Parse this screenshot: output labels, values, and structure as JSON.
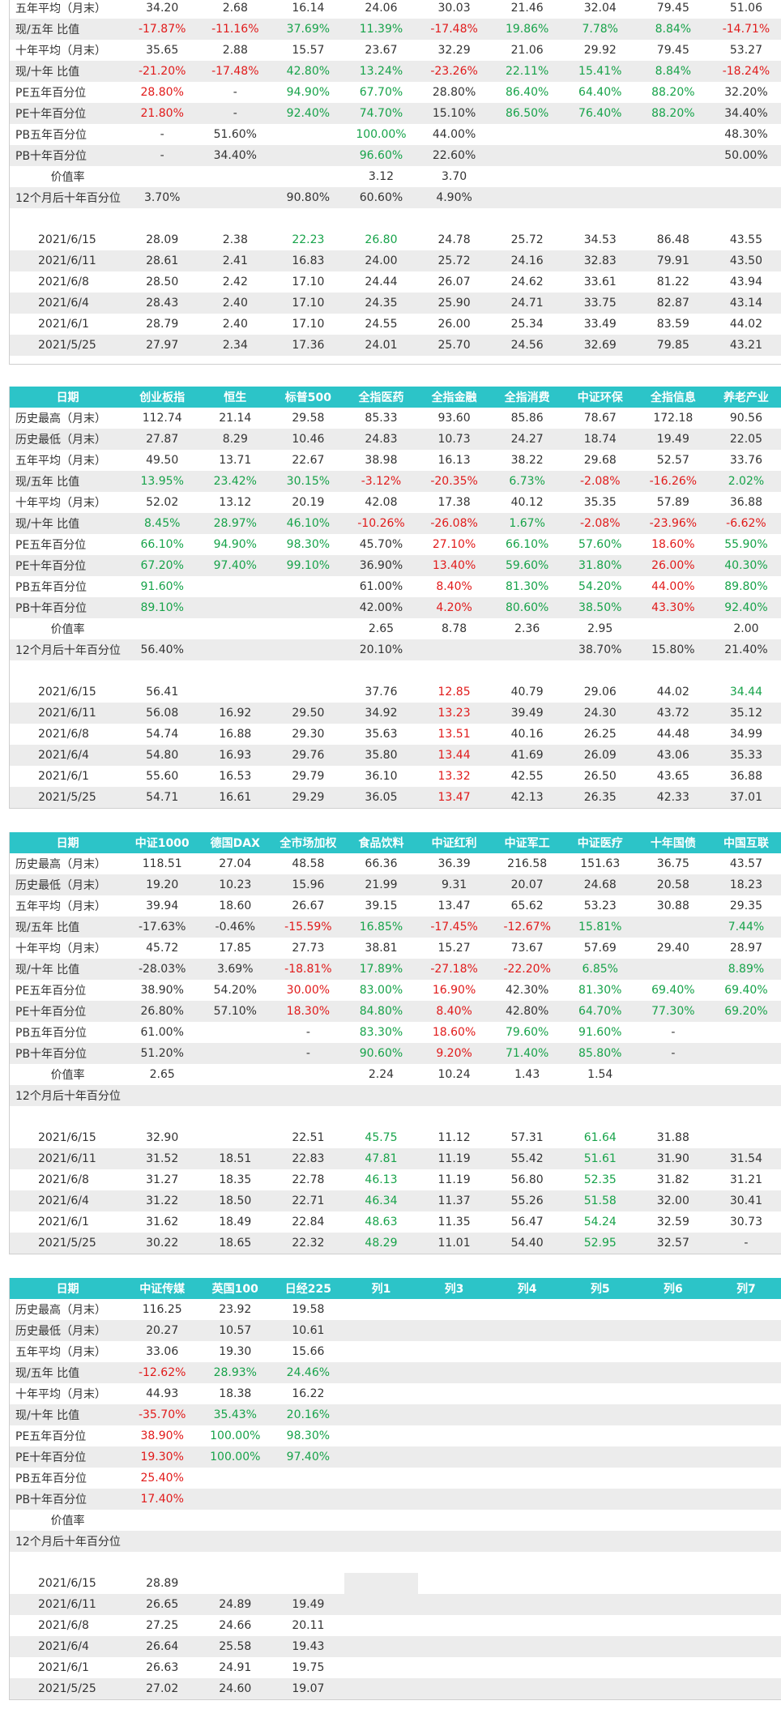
{
  "row_labels": {
    "hist_high": "历史最高（月末）",
    "hist_low": "历史最低（月末）",
    "avg5": "五年平均（月末）",
    "r5": "现/五年 比值",
    "avg10": "十年平均（月末）",
    "r10": "现/十年 比值",
    "pe5": "PE五年百分位",
    "pe10": "PE十年百分位",
    "pb5": "PB五年百分位",
    "pb10": "PB十年百分位",
    "vr": "价值率",
    "m12": "12个月后十年百分位"
  },
  "dates": [
    "2021/6/15",
    "2021/6/11",
    "2021/6/8",
    "2021/6/4",
    "2021/6/1",
    "2021/5/25"
  ],
  "tables": [
    {
      "header_cells": [],
      "rows": [
        {
          "k": "avg5",
          "c": [
            "34.20",
            "2.68",
            "16.14",
            "24.06",
            "30.03",
            "21.46",
            "32.04",
            "79.45",
            "51.06"
          ]
        },
        {
          "k": "r5",
          "c": [
            "-17.87%",
            "-11.16%",
            "37.69%",
            "11.39%",
            "-17.48%",
            "19.86%",
            "7.78%",
            "8.84%",
            "-14.71%"
          ]
        },
        {
          "k": "avg10",
          "c": [
            "35.65",
            "2.88",
            "15.57",
            "23.67",
            "32.29",
            "21.06",
            "29.92",
            "79.45",
            "53.27"
          ]
        },
        {
          "k": "r10",
          "c": [
            "-21.20%",
            "-17.48%",
            "42.80%",
            "13.24%",
            "-23.26%",
            "22.11%",
            "15.41%",
            "8.84%",
            "-18.24%"
          ]
        },
        {
          "k": "pe5",
          "c": [
            "28.80%",
            "-",
            "94.90%",
            "67.70%",
            "28.80%",
            "86.40%",
            "64.40%",
            "88.20%",
            "32.20%"
          ]
        },
        {
          "k": "pe10",
          "c": [
            "21.80%",
            "-",
            "92.40%",
            "74.70%",
            "15.10%",
            "86.50%",
            "76.40%",
            "88.20%",
            "34.40%"
          ]
        },
        {
          "k": "pb5",
          "c": [
            "-",
            "51.60%",
            "",
            "100.00%",
            "44.00%",
            "",
            "",
            "",
            "48.30%"
          ]
        },
        {
          "k": "pb10",
          "c": [
            "-",
            "34.40%",
            "",
            "96.60%",
            "22.60%",
            "",
            "",
            "",
            "50.00%"
          ]
        },
        {
          "k": "vr",
          "c": [
            "",
            "",
            "",
            "3.12",
            "3.70",
            "",
            "",
            "",
            ""
          ]
        },
        {
          "k": "m12",
          "c": [
            "3.70%",
            "",
            "90.80%",
            "60.60%",
            "4.90%",
            "",
            "",
            "",
            ""
          ]
        }
      ],
      "daily": [
        [
          "28.09",
          "2.38",
          "22.23",
          "26.80",
          "24.78",
          "25.72",
          "34.53",
          "86.48",
          "43.55"
        ],
        [
          "28.61",
          "2.41",
          "16.83",
          "24.00",
          "25.72",
          "24.16",
          "32.83",
          "79.91",
          "43.50"
        ],
        [
          "28.50",
          "2.42",
          "17.10",
          "24.44",
          "26.07",
          "24.62",
          "33.61",
          "81.22",
          "43.94"
        ],
        [
          "28.43",
          "2.40",
          "17.10",
          "24.35",
          "25.90",
          "24.71",
          "33.75",
          "82.87",
          "43.14"
        ],
        [
          "28.79",
          "2.40",
          "17.10",
          "24.55",
          "26.00",
          "25.34",
          "33.49",
          "83.59",
          "44.02"
        ],
        [
          "27.97",
          "2.34",
          "17.36",
          "24.01",
          "25.70",
          "24.56",
          "32.69",
          "79.85",
          "43.21"
        ]
      ]
    },
    {
      "header_cells": [
        "日期",
        "创业板指",
        "恒生",
        "标普500",
        "全指医药",
        "全指金融",
        "全指消费",
        "中证环保",
        "全指信息",
        "养老产业"
      ],
      "rows": [
        {
          "k": "hist_high",
          "c": [
            "112.74",
            "21.14",
            "29.58",
            "85.33",
            "93.60",
            "85.86",
            "78.67",
            "172.18",
            "90.56"
          ]
        },
        {
          "k": "hist_low",
          "c": [
            "27.87",
            "8.29",
            "10.46",
            "24.83",
            "10.73",
            "24.27",
            "18.74",
            "19.49",
            "22.05"
          ]
        },
        {
          "k": "avg5",
          "c": [
            "49.50",
            "13.71",
            "22.67",
            "38.98",
            "16.13",
            "38.22",
            "29.68",
            "52.57",
            "33.76"
          ]
        },
        {
          "k": "r5",
          "c": [
            "13.95%",
            "23.42%",
            "30.15%",
            "-3.12%",
            "-20.35%",
            "6.73%",
            "-2.08%",
            "-16.26%",
            "2.02%"
          ]
        },
        {
          "k": "avg10",
          "c": [
            "52.02",
            "13.12",
            "20.19",
            "42.08",
            "17.38",
            "40.12",
            "35.35",
            "57.89",
            "36.88"
          ]
        },
        {
          "k": "r10",
          "c": [
            "8.45%",
            "28.97%",
            "46.10%",
            "-10.26%",
            "-26.08%",
            "1.67%",
            "-2.08%",
            "-23.96%",
            "-6.62%"
          ]
        },
        {
          "k": "pe5",
          "c": [
            "66.10%",
            "94.90%",
            "98.30%",
            "45.70%",
            "27.10%",
            "66.10%",
            "57.60%",
            "18.60%",
            "55.90%"
          ]
        },
        {
          "k": "pe10",
          "c": [
            "67.20%",
            "97.40%",
            "99.10%",
            "36.90%",
            "13.40%",
            "59.60%",
            "31.80%",
            "26.00%",
            "40.30%"
          ]
        },
        {
          "k": "pb5",
          "c": [
            "91.60%",
            "",
            "",
            "61.00%",
            "8.40%",
            "81.30%",
            "54.20%",
            "44.00%",
            "89.80%"
          ]
        },
        {
          "k": "pb10",
          "c": [
            "89.10%",
            "",
            "",
            "42.00%",
            "4.20%",
            "80.60%",
            "38.50%",
            "43.30%",
            "92.40%"
          ]
        },
        {
          "k": "vr",
          "c": [
            "",
            "",
            "",
            "2.65",
            "8.78",
            "2.36",
            "2.95",
            "",
            "2.00"
          ]
        },
        {
          "k": "m12",
          "c": [
            "56.40%",
            "",
            "",
            "20.10%",
            "",
            "",
            "38.70%",
            "15.80%",
            "21.40%"
          ]
        }
      ],
      "daily": [
        [
          "56.41",
          "",
          "",
          "37.76",
          "12.85",
          "40.79",
          "29.06",
          "44.02",
          "34.44"
        ],
        [
          "56.08",
          "16.92",
          "29.50",
          "34.92",
          "13.23",
          "39.49",
          "24.30",
          "43.72",
          "35.12"
        ],
        [
          "54.74",
          "16.88",
          "29.30",
          "35.63",
          "13.51",
          "40.16",
          "26.25",
          "44.48",
          "34.99"
        ],
        [
          "54.80",
          "16.93",
          "29.76",
          "35.80",
          "13.44",
          "41.69",
          "26.09",
          "43.06",
          "35.33"
        ],
        [
          "55.60",
          "16.53",
          "29.79",
          "36.10",
          "13.32",
          "42.55",
          "26.50",
          "43.65",
          "36.88"
        ],
        [
          "54.71",
          "16.61",
          "29.29",
          "36.05",
          "13.47",
          "42.13",
          "26.35",
          "42.33",
          "37.01"
        ]
      ]
    },
    {
      "header_cells": [
        "日期",
        "中证1000",
        "德国DAX",
        "全市场加权",
        "食品饮料",
        "中证红利",
        "中证军工",
        "中证医疗",
        "十年国债",
        "中国互联"
      ],
      "rows": [
        {
          "k": "hist_high",
          "c": [
            "118.51",
            "27.04",
            "48.58",
            "66.36",
            "36.39",
            "216.58",
            "151.63",
            "36.75",
            "43.57"
          ]
        },
        {
          "k": "hist_low",
          "c": [
            "19.20",
            "10.23",
            "15.96",
            "21.99",
            "9.31",
            "20.07",
            "24.68",
            "20.58",
            "18.23"
          ]
        },
        {
          "k": "avg5",
          "c": [
            "39.94",
            "18.60",
            "26.67",
            "39.15",
            "13.47",
            "65.62",
            "53.23",
            "30.88",
            "29.35"
          ]
        },
        {
          "k": "r5",
          "c": [
            "-17.63%",
            "-0.46%",
            "-15.59%",
            "16.85%",
            "-17.45%",
            "-12.67%",
            "15.81%",
            "",
            "7.44%"
          ]
        },
        {
          "k": "avg10",
          "c": [
            "45.72",
            "17.85",
            "27.73",
            "38.81",
            "15.27",
            "73.67",
            "57.69",
            "29.40",
            "28.97"
          ]
        },
        {
          "k": "r10",
          "c": [
            "-28.03%",
            "3.69%",
            "-18.81%",
            "17.89%",
            "-27.18%",
            "-22.20%",
            "6.85%",
            "",
            "8.89%"
          ]
        },
        {
          "k": "pe5",
          "c": [
            "38.90%",
            "54.20%",
            "30.00%",
            "83.00%",
            "16.90%",
            "42.30%",
            "81.30%",
            "69.40%",
            "69.40%"
          ]
        },
        {
          "k": "pe10",
          "c": [
            "26.80%",
            "57.10%",
            "18.30%",
            "84.80%",
            "8.40%",
            "42.80%",
            "64.70%",
            "77.30%",
            "69.20%"
          ]
        },
        {
          "k": "pb5",
          "c": [
            "61.00%",
            "",
            "-",
            "83.30%",
            "18.60%",
            "79.60%",
            "91.60%",
            "-",
            ""
          ]
        },
        {
          "k": "pb10",
          "c": [
            "51.20%",
            "",
            "-",
            "90.60%",
            "9.20%",
            "71.40%",
            "85.80%",
            "-",
            ""
          ]
        },
        {
          "k": "vr",
          "c": [
            "2.65",
            "",
            "",
            "2.24",
            "10.24",
            "1.43",
            "1.54",
            "",
            ""
          ]
        },
        {
          "k": "m12",
          "c": [
            "",
            "",
            "",
            "",
            "",
            "",
            "",
            "",
            ""
          ]
        }
      ],
      "daily": [
        [
          "32.90",
          "",
          "22.51",
          "45.75",
          "11.12",
          "57.31",
          "61.64",
          "31.88",
          ""
        ],
        [
          "31.52",
          "18.51",
          "22.83",
          "47.81",
          "11.19",
          "55.42",
          "51.61",
          "31.90",
          "31.54"
        ],
        [
          "31.27",
          "18.35",
          "22.78",
          "46.13",
          "11.19",
          "56.80",
          "52.35",
          "31.82",
          "31.21"
        ],
        [
          "31.22",
          "18.50",
          "22.71",
          "46.34",
          "11.37",
          "55.26",
          "51.58",
          "32.00",
          "30.41"
        ],
        [
          "31.62",
          "18.49",
          "22.84",
          "48.63",
          "11.35",
          "56.47",
          "54.24",
          "32.59",
          "30.73"
        ],
        [
          "30.22",
          "18.65",
          "22.32",
          "48.29",
          "11.01",
          "54.40",
          "52.95",
          "32.57",
          "-"
        ]
      ]
    },
    {
      "header_cells": [
        "日期",
        "中证传媒",
        "英国100",
        "日经225",
        "列1",
        "列3",
        "列4",
        "列5",
        "列6",
        "列7"
      ],
      "rows": [
        {
          "k": "hist_high",
          "c": [
            "116.25",
            "23.92",
            "19.58",
            "",
            "",
            "",
            "",
            "",
            ""
          ]
        },
        {
          "k": "hist_low",
          "c": [
            "20.27",
            "10.57",
            "10.61",
            "",
            "",
            "",
            "",
            "",
            ""
          ]
        },
        {
          "k": "avg5",
          "c": [
            "33.06",
            "19.30",
            "15.66",
            "",
            "",
            "",
            "",
            "",
            ""
          ]
        },
        {
          "k": "r5",
          "c": [
            "-12.62%",
            "28.93%",
            "24.46%",
            "",
            "",
            "",
            "",
            "",
            ""
          ]
        },
        {
          "k": "avg10",
          "c": [
            "44.93",
            "18.38",
            "16.22",
            "",
            "",
            "",
            "",
            "",
            ""
          ]
        },
        {
          "k": "r10",
          "c": [
            "-35.70%",
            "35.43%",
            "20.16%",
            "",
            "",
            "",
            "",
            "",
            ""
          ]
        },
        {
          "k": "pe5",
          "c": [
            "38.90%",
            "100.00%",
            "98.30%",
            "",
            "",
            "",
            "",
            "",
            ""
          ]
        },
        {
          "k": "pe10",
          "c": [
            "19.30%",
            "100.00%",
            "97.40%",
            "",
            "",
            "",
            "",
            "",
            ""
          ]
        },
        {
          "k": "pb5",
          "c": [
            "25.40%",
            "",
            "",
            "",
            "",
            "",
            "",
            "",
            ""
          ]
        },
        {
          "k": "pb10",
          "c": [
            "17.40%",
            "",
            "",
            "",
            "",
            "",
            "",
            "",
            ""
          ]
        },
        {
          "k": "vr",
          "c": [
            "",
            "",
            "",
            "",
            "",
            "",
            "",
            "",
            ""
          ]
        },
        {
          "k": "m12",
          "c": [
            "",
            "",
            "",
            "",
            "",
            "",
            "",
            "",
            ""
          ]
        }
      ],
      "daily": [
        [
          "28.89",
          "",
          "",
          "",
          "",
          "",
          "",
          "",
          ""
        ],
        [
          "26.65",
          "24.89",
          "19.49",
          "",
          "",
          "",
          "",
          "",
          ""
        ],
        [
          "27.25",
          "24.66",
          "20.11",
          "",
          "",
          "",
          "",
          "",
          ""
        ],
        [
          "26.64",
          "25.58",
          "19.43",
          "",
          "",
          "",
          "",
          "",
          ""
        ],
        [
          "26.63",
          "24.91",
          "19.75",
          "",
          "",
          "",
          "",
          "",
          ""
        ],
        [
          "27.02",
          "24.60",
          "19.07",
          "",
          "",
          "",
          "",
          "",
          ""
        ]
      ]
    }
  ]
}
